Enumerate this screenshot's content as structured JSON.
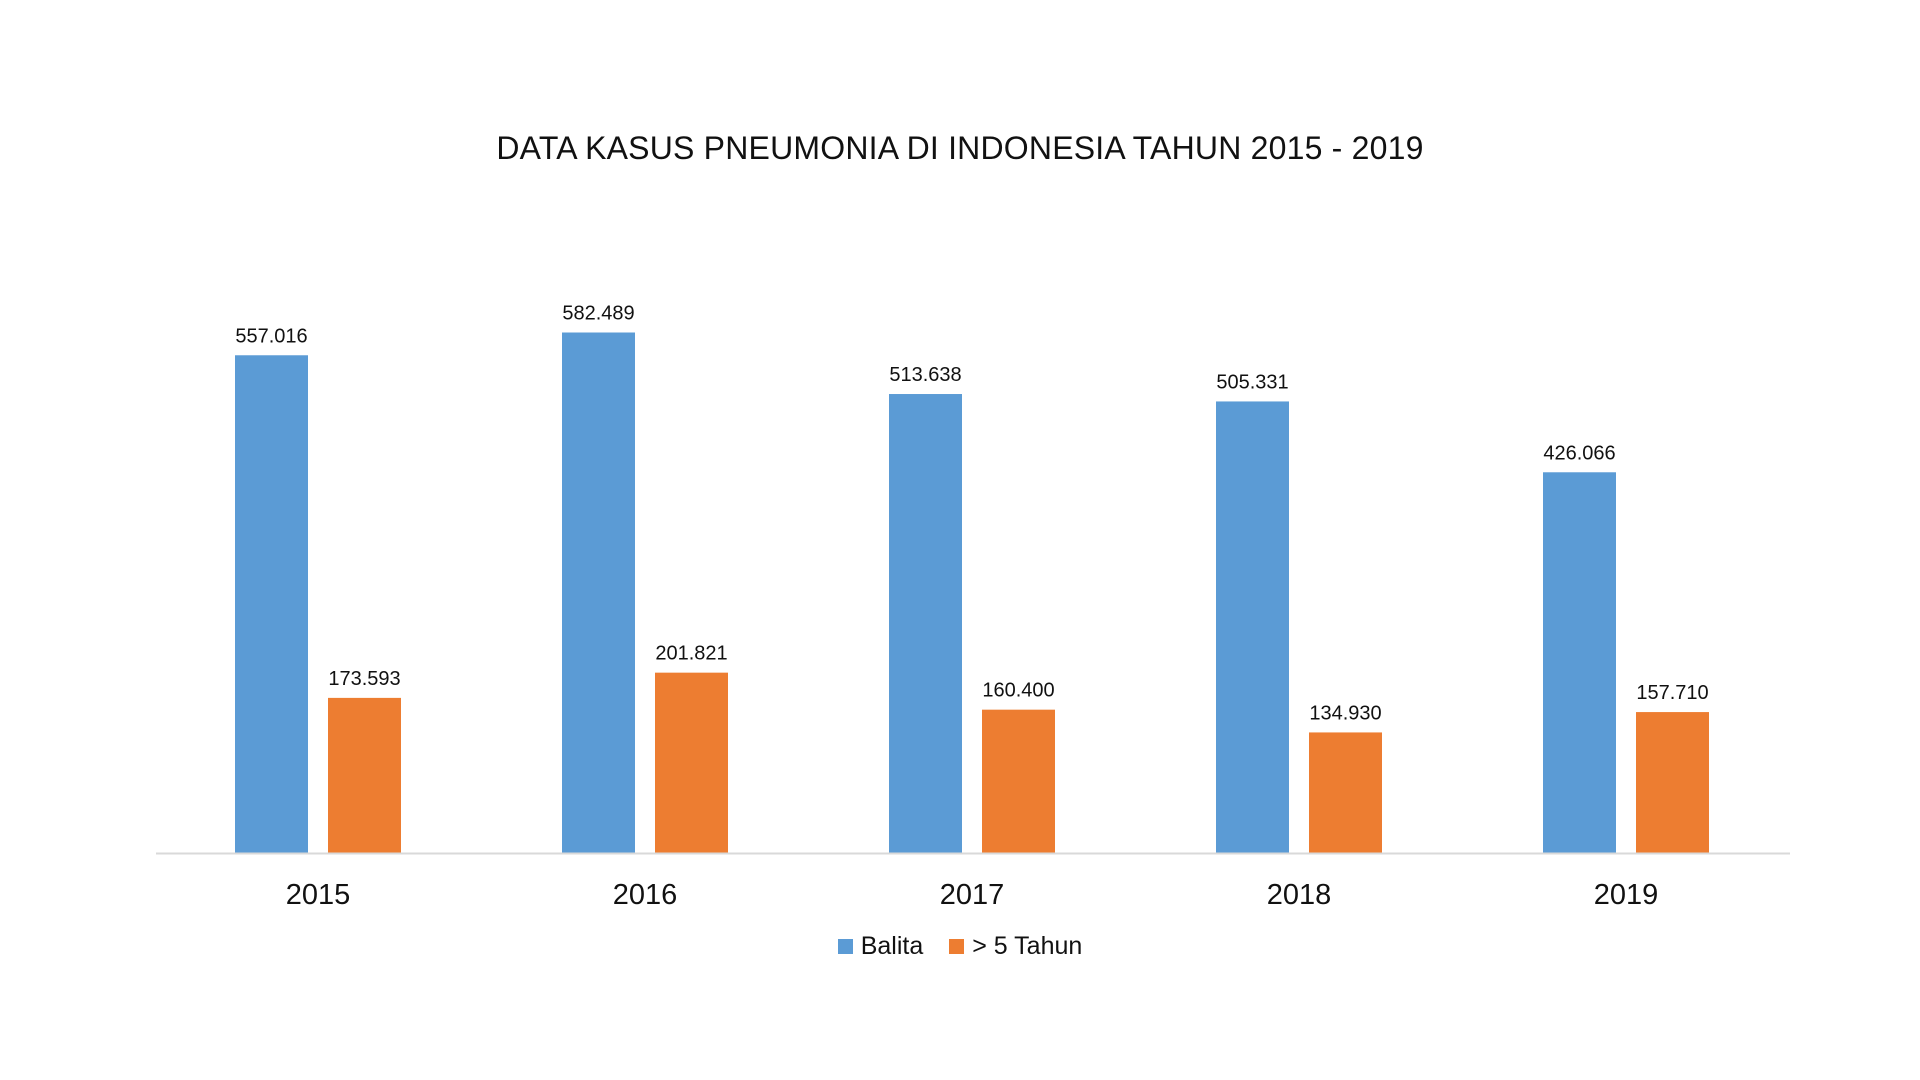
{
  "chart_data": {
    "type": "bar",
    "title": "DATA KASUS PNEUMONIA DI INDONESIA TAHUN 2015 - 2019",
    "categories": [
      "2015",
      "2016",
      "2017",
      "2018",
      "2019"
    ],
    "series": [
      {
        "name": "Balita",
        "color": "#5B9BD5",
        "values": [
          557016,
          582489,
          513638,
          505331,
          426066
        ],
        "labels": [
          "557.016",
          "582.489",
          "513.638",
          "505.331",
          "426.066"
        ]
      },
      {
        "name": "> 5 Tahun",
        "color": "#ED7D31",
        "values": [
          173593,
          201821,
          160400,
          134930,
          157710
        ],
        "labels": [
          "173.593",
          "201.821",
          "160.400",
          "134.930",
          "157.710"
        ]
      }
    ],
    "ylim": [
      0,
      600000
    ],
    "xlabel": "",
    "ylabel": "",
    "grid": false,
    "legend_position": "bottom"
  }
}
